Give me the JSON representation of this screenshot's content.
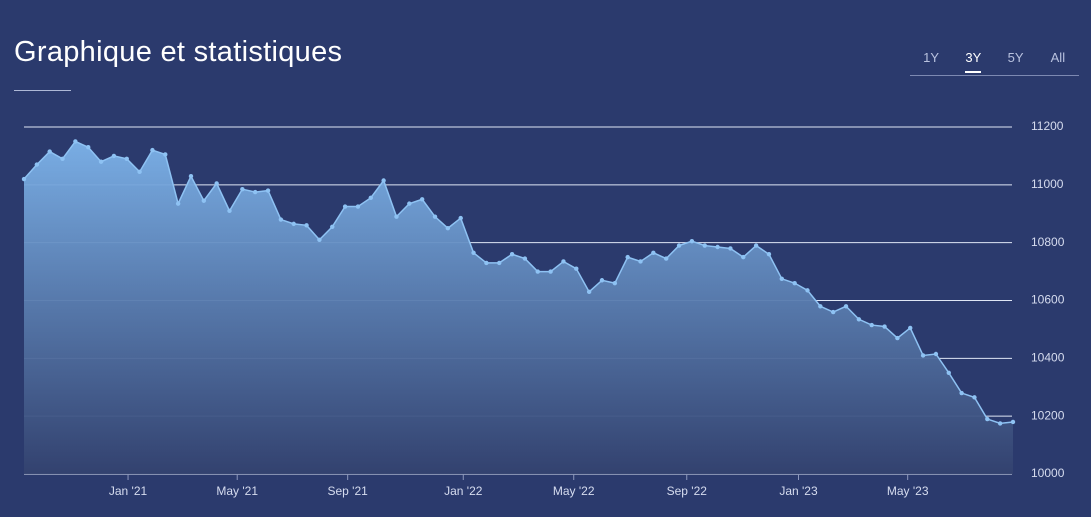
{
  "header": {
    "title": "Graphique et statistiques",
    "tabs": [
      "1Y",
      "3Y",
      "5Y",
      "All"
    ],
    "active_tab": "3Y"
  },
  "chart_data": {
    "type": "area",
    "series": [
      {
        "color": "#8ec2f3",
        "values": [
          11020,
          11070,
          11115,
          11090,
          11150,
          11130,
          11080,
          11100,
          11090,
          11045,
          11120,
          11105,
          10935,
          11030,
          10945,
          11005,
          10910,
          10985,
          10975,
          10980,
          10880,
          10865,
          10860,
          10810,
          10855,
          10925,
          10925,
          10955,
          11015,
          10890,
          10935,
          10950,
          10890,
          10850,
          10885,
          10765,
          10730,
          10730,
          10760,
          10745,
          10700,
          10700,
          10735,
          10710,
          10630,
          10670,
          10660,
          10750,
          10735,
          10765,
          10745,
          10790,
          10805,
          10790,
          10785,
          10780,
          10750,
          10790,
          10760,
          10675,
          10660,
          10635,
          10580,
          10560,
          10580,
          10535,
          10515,
          10510,
          10470,
          10505,
          10410,
          10415,
          10350,
          10280,
          10265,
          10190,
          10175,
          10180
        ]
      }
    ],
    "xlim": [
      0,
      77
    ],
    "xticks": [
      {
        "value": 8.1,
        "label": "Jan '21"
      },
      {
        "value": 16.6,
        "label": "May '21"
      },
      {
        "value": 25.2,
        "label": "Sep '21"
      },
      {
        "value": 34.2,
        "label": "Jan '22"
      },
      {
        "value": 42.8,
        "label": "May '22"
      },
      {
        "value": 51.6,
        "label": "Sep '22"
      },
      {
        "value": 60.3,
        "label": "Jan '23"
      },
      {
        "value": 68.8,
        "label": "May '23"
      }
    ],
    "ylim": [
      10000,
      11200
    ],
    "yticks": [
      10000,
      10200,
      10400,
      10600,
      10800,
      11000,
      11200
    ],
    "grid": true
  }
}
